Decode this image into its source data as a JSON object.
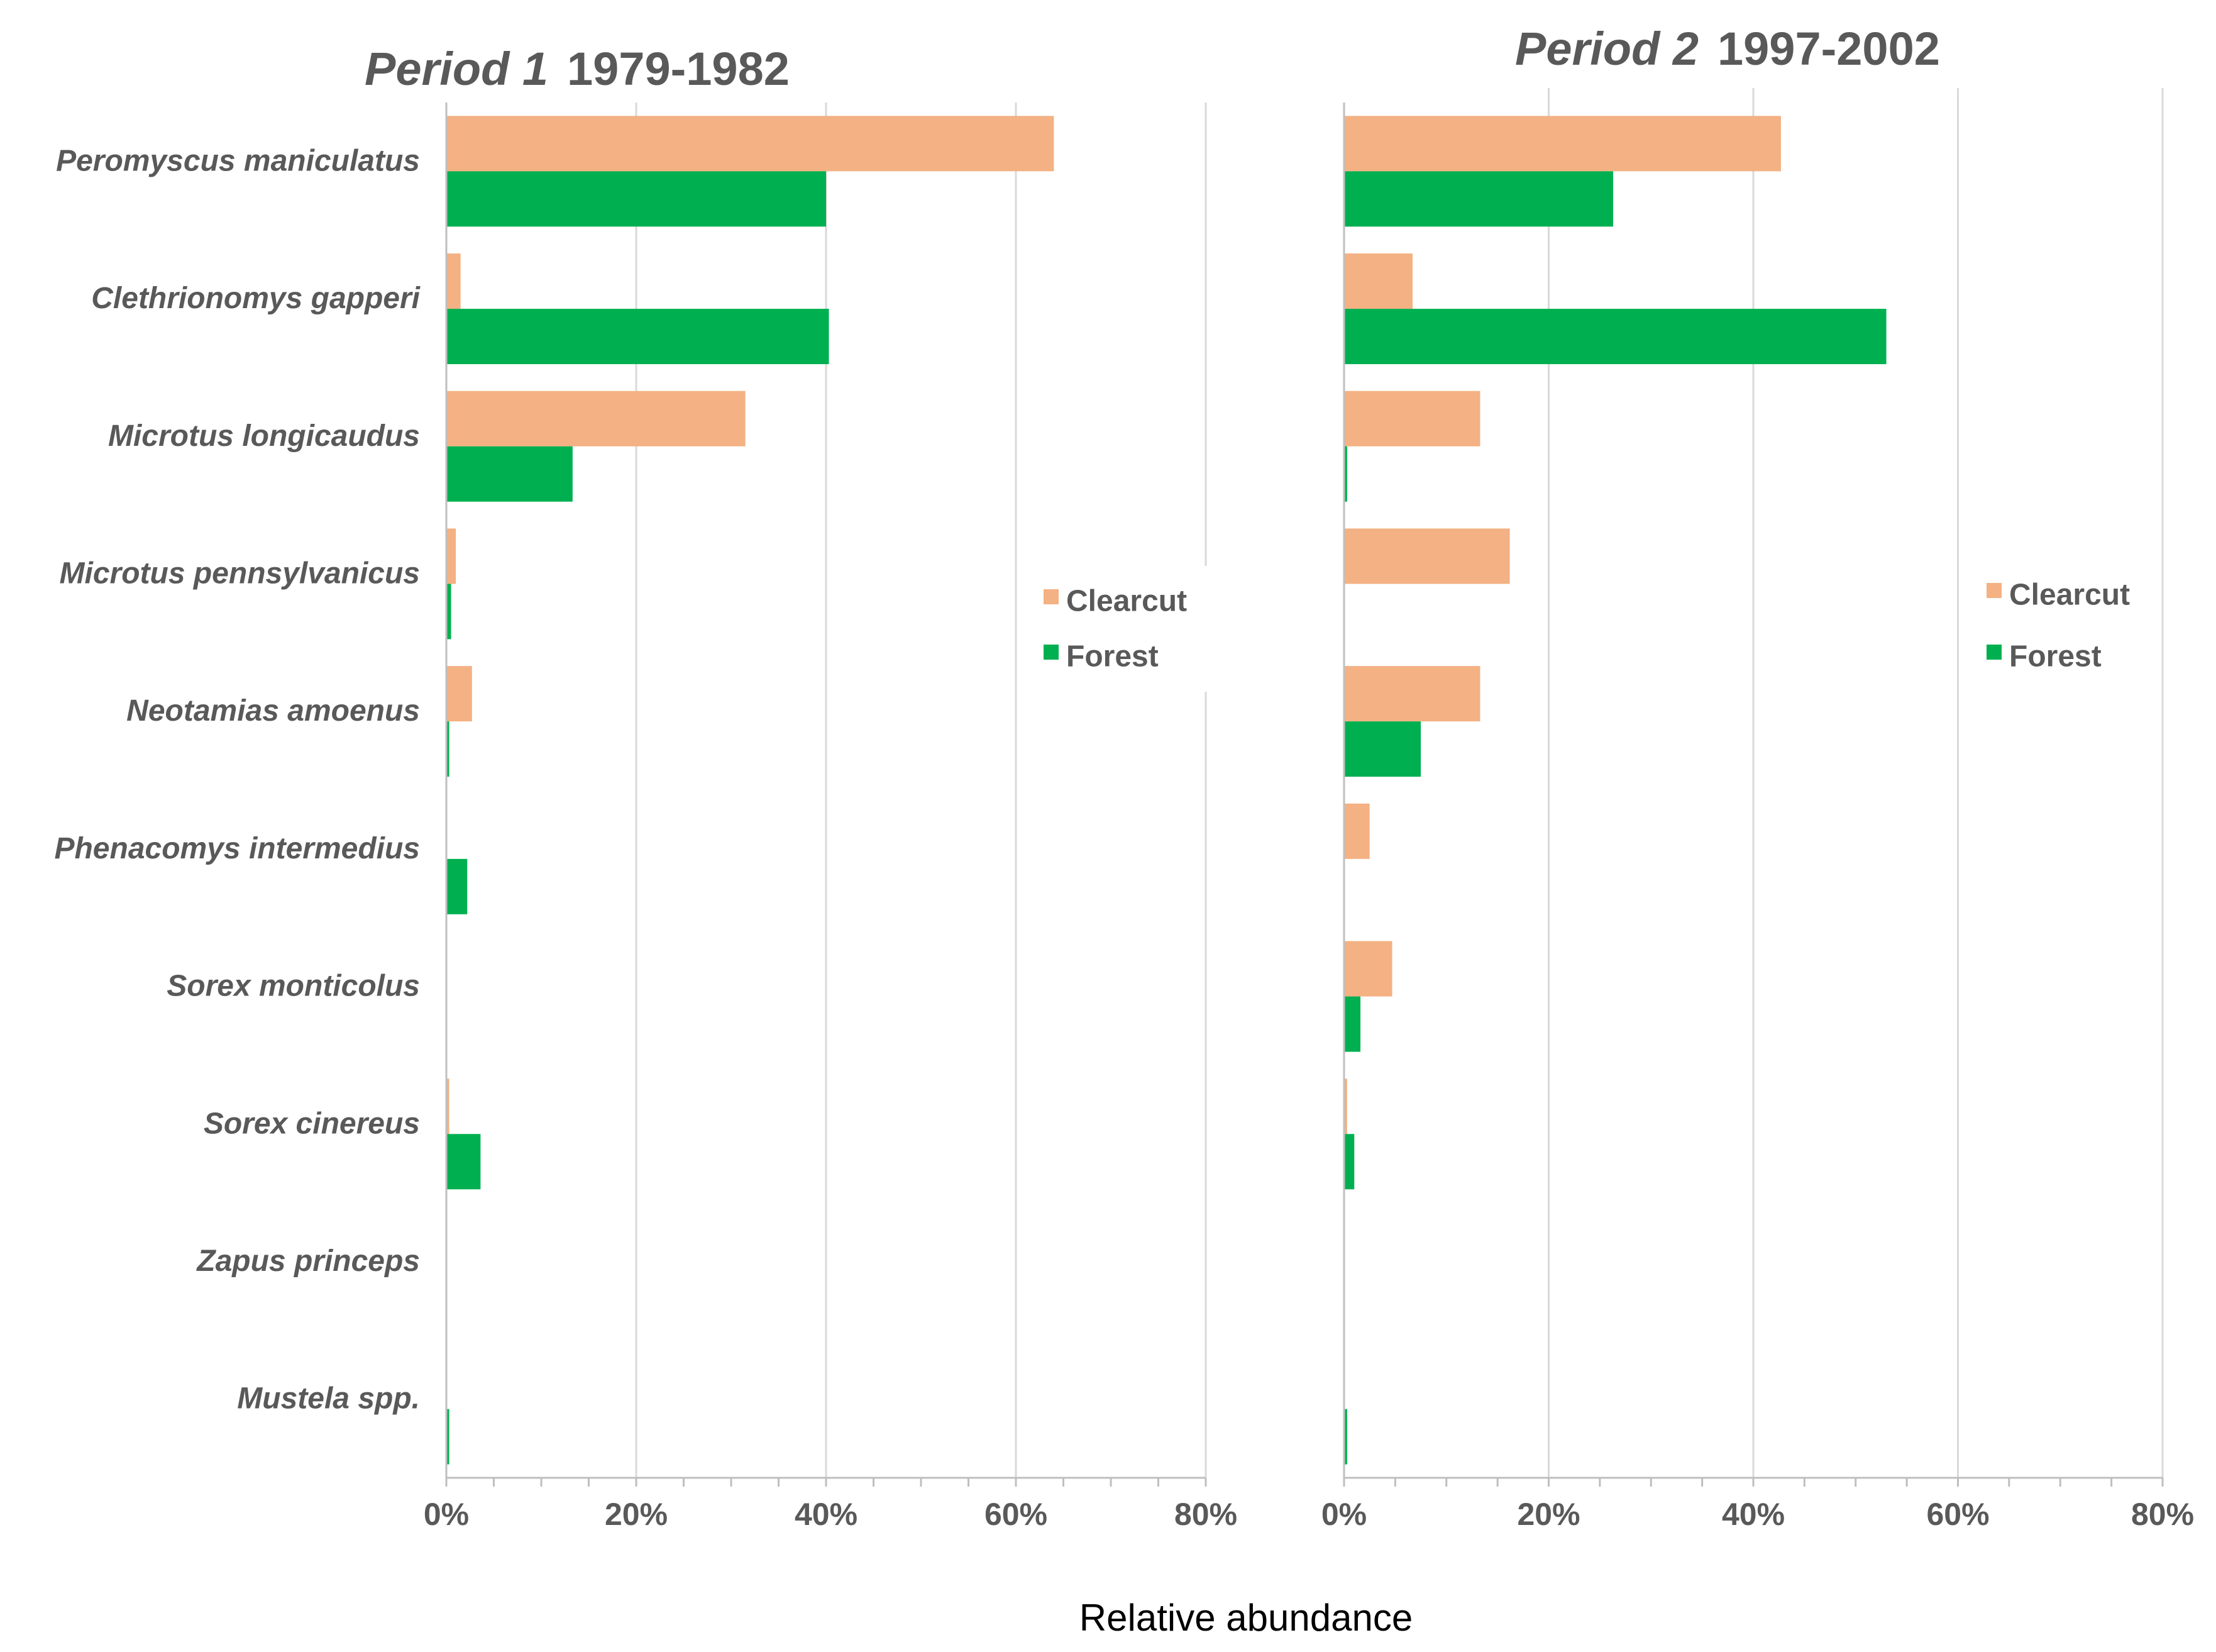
{
  "axis_label": "Relative abundance",
  "colors": {
    "clearcut": "#f4b183",
    "forest": "#00b050",
    "grid": "#d9d9d9",
    "axis": "#bfbfbf",
    "text": "#595959"
  },
  "chart_data": [
    {
      "type": "bar",
      "orientation": "horizontal",
      "title_italic": "Period 1",
      "title_years": "1979-1982",
      "xlabel": "Relative abundance",
      "xlim": [
        0,
        80
      ],
      "ticks": [
        0,
        20,
        40,
        60,
        80
      ],
      "tick_labels": [
        "0%",
        "20%",
        "40%",
        "60%",
        "80%"
      ],
      "grid": true,
      "legend_position": "right",
      "categories": [
        "Peromyscus maniculatus",
        "Clethrionomys gapperi",
        "Microtus longicaudus",
        "Microtus pennsylvanicus",
        "Neotamias amoenus",
        "Phenacomys intermedius",
        "Sorex monticolus",
        "Sorex cinereus",
        "Zapus princeps",
        "Mustela spp."
      ],
      "series": [
        {
          "name": "Clearcut",
          "values": [
            64,
            1.5,
            31.5,
            1,
            2.7,
            0,
            0,
            0.3,
            0,
            0
          ]
        },
        {
          "name": "Forest",
          "values": [
            40,
            40.3,
            13.3,
            0.5,
            0.3,
            2.2,
            0,
            3.6,
            0,
            0.3
          ]
        }
      ]
    },
    {
      "type": "bar",
      "orientation": "horizontal",
      "title_italic": "Period 2",
      "title_years": "1997-2002",
      "xlabel": "Relative abundance",
      "xlim": [
        0,
        80
      ],
      "ticks": [
        0,
        20,
        40,
        60,
        80
      ],
      "tick_labels": [
        "0%",
        "20%",
        "40%",
        "60%",
        "80%"
      ],
      "grid": true,
      "legend_position": "right",
      "categories": [
        "Peromyscus maniculatus",
        "Clethrionomys gapperi",
        "Microtus longicaudus",
        "Microtus pennsylvanicus",
        "Neotamias amoenus",
        "Phenacomys intermedius",
        "Sorex monticolus",
        "Sorex cinereus",
        "Zapus princeps",
        "Mustela spp."
      ],
      "series": [
        {
          "name": "Clearcut",
          "values": [
            42.7,
            6.7,
            13.3,
            16.2,
            13.3,
            2.5,
            4.7,
            0.3,
            0,
            0
          ]
        },
        {
          "name": "Forest",
          "values": [
            26.3,
            53,
            0.3,
            0,
            7.5,
            0,
            1.6,
            1,
            0,
            0.3
          ]
        }
      ]
    }
  ]
}
